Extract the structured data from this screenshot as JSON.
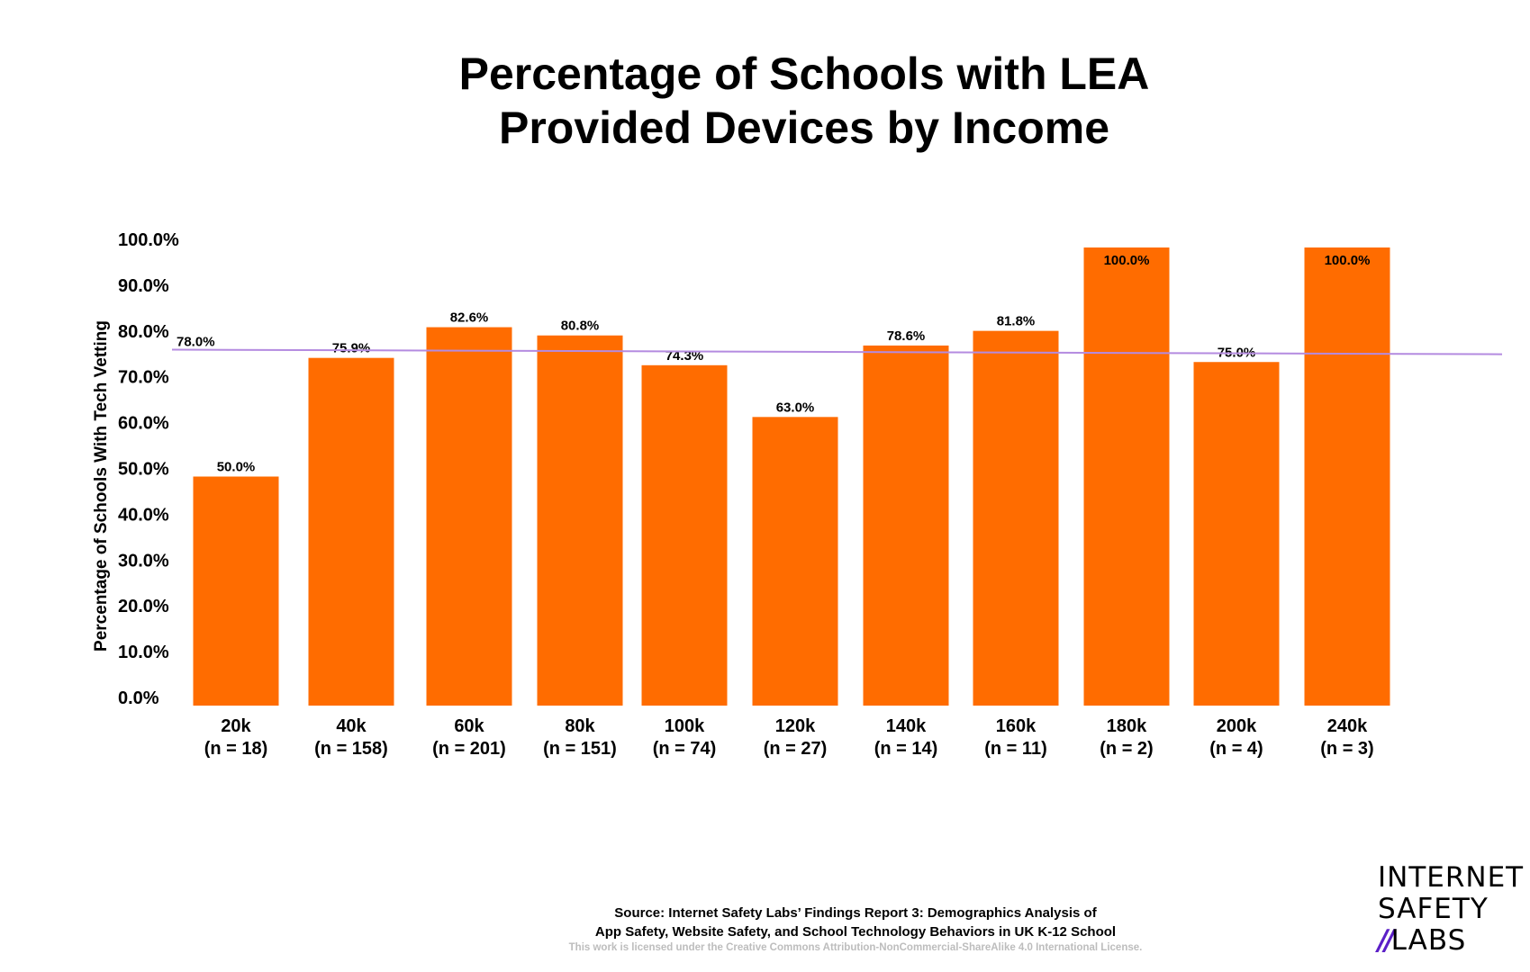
{
  "chart_data": {
    "type": "bar",
    "title_lines": [
      "Percentage of Schools with LEA",
      "Provided Devices by Income"
    ],
    "ylabel": "Percentage of Schools With Tech Vetting",
    "xlabel": "",
    "ylim": [
      0,
      100
    ],
    "yticks": [
      "0.0%",
      "10.0%",
      "20.0%",
      "30.0%",
      "40.0%",
      "50.0%",
      "60.0%",
      "70.0%",
      "80.0%",
      "90.0%",
      "100.0%"
    ],
    "categories": [
      "20k",
      "40k",
      "60k",
      "80k",
      "100k",
      "120k",
      "140k",
      "160k",
      "180k",
      "200k",
      "240k"
    ],
    "sample_sizes": [
      "(n = 18)",
      "(n = 158)",
      "(n = 201)",
      "(n = 151)",
      "(n = 74)",
      "(n = 27)",
      "(n = 14)",
      "(n = 11)",
      "(n = 2)",
      "(n = 4)",
      "(n = 3)"
    ],
    "values": [
      50.0,
      75.9,
      82.6,
      80.8,
      74.3,
      63.0,
      78.6,
      81.8,
      100.0,
      75.0,
      100.0
    ],
    "data_labels": [
      "50.0%",
      "75.9%",
      "82.6%",
      "80.8%",
      "74.3%",
      "63.0%",
      "78.6%",
      "81.8%",
      "100.0%",
      "75.0%",
      "100.0%"
    ],
    "reference_line": {
      "label": "78.0%",
      "start_value": 77.7,
      "end_value": 76.7,
      "color": "#b48be0"
    },
    "bar_color": "#ff6c00",
    "grid": false,
    "legend": "none"
  },
  "footer": {
    "source_line1": "Source: Internet Safety Labs’ Findings Report 3: Demographics Analysis of",
    "source_line2": "App Safety, Website Safety, and School Technology Behaviors in UK K-12 School",
    "license": "This work is licensed under the Creative Commons Attribution-NonCommercial-ShareAlike 4.0 International License."
  },
  "logo": {
    "line1": "INTERNET",
    "line2": "SAFETY",
    "line3_mark": "//",
    "line3": "LABS",
    "accent": "#5b1fc7"
  }
}
